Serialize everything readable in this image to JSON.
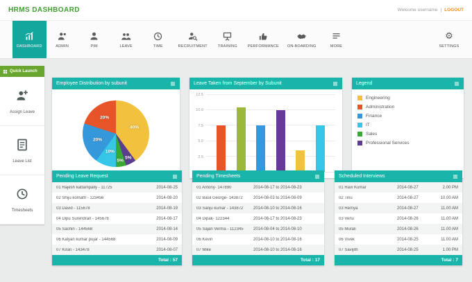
{
  "header": {
    "title": "HRMS DASHBOARD",
    "welcome": "Welcome username",
    "separator": "|",
    "logout": "LOGOUT"
  },
  "nav": {
    "items": [
      {
        "label": "DASHBOARD",
        "active": true
      },
      {
        "label": "ADMIN",
        "active": false
      },
      {
        "label": "PIM",
        "active": false
      },
      {
        "label": "LEAVE",
        "active": false
      },
      {
        "label": "TIME",
        "active": false
      },
      {
        "label": "RECRUITMENT",
        "active": false
      },
      {
        "label": "TRAINING",
        "active": false
      },
      {
        "label": "PERFORMANCE",
        "active": false
      },
      {
        "label": "ON-BOARDING",
        "active": false
      },
      {
        "label": "MORE",
        "active": false
      }
    ],
    "settings_label": "SETTINGS"
  },
  "quick_launch": {
    "title": "Quick Launch",
    "items": [
      {
        "label": "Assign Leave"
      },
      {
        "label": "Leave List"
      },
      {
        "label": "Timesheets"
      }
    ]
  },
  "panels": {
    "pie": {
      "title": "Employee Distribution by subunit"
    },
    "bar": {
      "title": "Leave Taken from September by Subunit"
    },
    "legend": {
      "title": "Legend",
      "items": [
        {
          "label": "Engineering",
          "color": "#f2c23e"
        },
        {
          "label": "Administration",
          "color": "#e8542a"
        },
        {
          "label": "Finance",
          "color": "#3498db"
        },
        {
          "label": "IT",
          "color": "#36c6e8"
        },
        {
          "label": "Sales",
          "color": "#39a935"
        },
        {
          "label": "Professional Services",
          "color": "#5b3d90"
        }
      ]
    },
    "leave_requests": {
      "title": "Pending Leave Request",
      "rows": [
        {
          "name": "01 Rajesh kattampally  - 11725",
          "date": "2014-08-25"
        },
        {
          "name": "02 Shiju komath - 123456",
          "date": "2014-08-20"
        },
        {
          "name": "03 David - 115678",
          "date": "2014-08-19"
        },
        {
          "name": "04 Dipu Surendran - 145678",
          "date": "2014-08-17"
        },
        {
          "name": "05 Sachin - 144568",
          "date": "2014-08-14"
        },
        {
          "name": "06 Kalyan kumar pujar - 144568",
          "date": "2014-08-09"
        },
        {
          "name": "07 Kiran - 143478",
          "date": "2014-08-07"
        }
      ],
      "total": "Total : 57"
    },
    "timesheets": {
      "title": "Pending Timesheets",
      "rows": [
        {
          "name": "01 Antony- 147890",
          "range": "2014-08-17 to 2014-08-23"
        },
        {
          "name": "02 Basil George- 143872",
          "range": "2014-08-03 to 2014-08-09"
        },
        {
          "name": "03 Sanju kumar - 143872",
          "range": "2014-08-10 to 2014-08-16"
        },
        {
          "name": "04 Dipak- 122344",
          "range": "2014-08-17 to 2014-08-23"
        },
        {
          "name": "05 Sajan Verma - 112345",
          "range": "2014-08-04 to 2014-08-10"
        },
        {
          "name": "06 Kevin",
          "range": "2014-08-10 to 2014-08-16"
        },
        {
          "name": "07 Mike",
          "range": "2014-08-10 to 2014-08-16"
        }
      ],
      "total": "Total : 17"
    },
    "interviews": {
      "title": "Scheduled Interviews",
      "rows": [
        {
          "name": "01 Ravi Kumar",
          "date": "2014-08-27",
          "time": "2.00 PM"
        },
        {
          "name": "02 Tinu",
          "date": "2014-08-27",
          "time": "10.00 AM"
        },
        {
          "name": "03 Remya",
          "date": "2014-08-27",
          "time": "11.00 AM"
        },
        {
          "name": "03 Venu",
          "date": "2014-08-26",
          "time": "11.00 AM"
        },
        {
          "name": "05 Murali",
          "date": "2014-08-26",
          "time": "11.00 AM"
        },
        {
          "name": "06 Vivek",
          "date": "2014-08-25",
          "time": "11.00 AM"
        },
        {
          "name": "07 Savijith",
          "date": "2014-08-25",
          "time": "1.00 PM"
        }
      ],
      "total": "Total : 7"
    }
  },
  "chart_data": [
    {
      "type": "pie",
      "title": "Employee Distribution by subunit",
      "categories": [
        "Engineering",
        "Professional Services",
        "Sales",
        "IT",
        "Finance",
        "Administration"
      ],
      "values": [
        40,
        5,
        5,
        10,
        20,
        20
      ],
      "labels": [
        "40%",
        "5%",
        "5%",
        "10%",
        "20%",
        "20%"
      ],
      "colors": [
        "#f2c23e",
        "#5b3d90",
        "#39a935",
        "#36c6e8",
        "#3498db",
        "#e8542a"
      ],
      "legend_position": "separate-panel"
    },
    {
      "type": "bar",
      "title": "Leave Taken from September by Subunit",
      "categories": [
        "Administration",
        "Sales",
        "Finance",
        "Professional Services",
        "Engineering",
        "IT"
      ],
      "values": [
        7.5,
        10.5,
        7.5,
        10,
        3.5,
        7.5
      ],
      "colors": [
        "#e8542a",
        "#9cb83b",
        "#3498db",
        "#67399b",
        "#f2c23e",
        "#36c6e8"
      ],
      "ylim": [
        0,
        12.5
      ],
      "yticks": [
        2.5,
        5,
        7.5,
        10,
        12.5
      ],
      "xlabel": "",
      "ylabel": "",
      "grid": true
    }
  ]
}
